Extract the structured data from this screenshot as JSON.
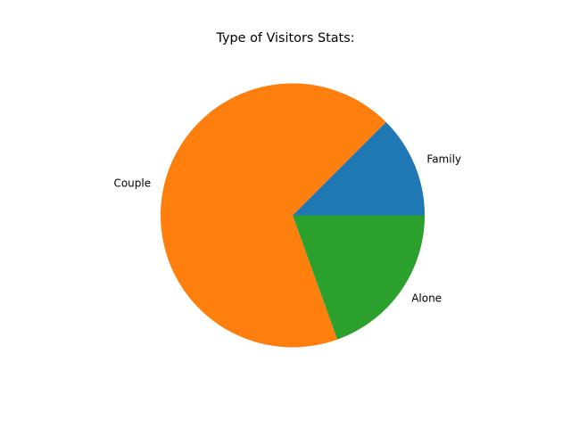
{
  "chart_data": {
    "type": "pie",
    "title": "Type of Visitors Stats:",
    "slices": [
      {
        "label": "Family",
        "value": 12.5,
        "color": "#1f77b4"
      },
      {
        "label": "Couple",
        "value": 68.0,
        "color": "#ff7f0e"
      },
      {
        "label": "Alone",
        "value": 19.5,
        "color": "#2ca02c"
      }
    ],
    "start_angle_deg": 0,
    "direction": "counterclockwise",
    "legend": "none"
  }
}
